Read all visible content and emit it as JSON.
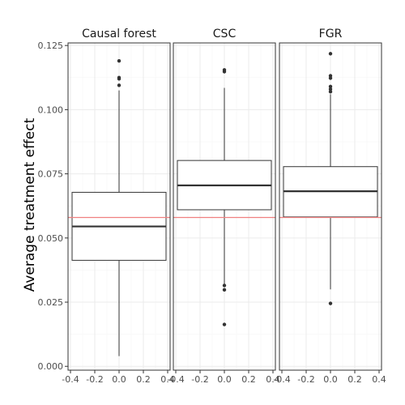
{
  "chart_data": {
    "type": "boxplot",
    "ylabel": "Average treatment effect",
    "xlabel": "",
    "ylim": [
      -0.0015,
      0.126
    ],
    "xlim": [
      -0.42,
      0.42
    ],
    "y_ticks": [
      0.0,
      0.025,
      0.05,
      0.075,
      0.1,
      0.125
    ],
    "y_tick_labels": [
      "0.000",
      "0.025",
      "0.050",
      "0.075",
      "0.100",
      "0.125"
    ],
    "x_ticks": [
      -0.4,
      -0.2,
      0.0,
      0.2,
      0.4
    ],
    "x_tick_labels": [
      "-0.4",
      "-0.2",
      "0.0",
      "0.2",
      "0.4"
    ],
    "reference_line": {
      "y": 0.058,
      "color": "#f08080"
    },
    "grid": true,
    "panels": [
      {
        "label": "Causal forest",
        "q1": 0.0413,
        "median": 0.0545,
        "q3": 0.0678,
        "whisker_low": 0.004,
        "whisker_high": 0.1075,
        "outliers": [
          0.119,
          0.1125,
          0.112,
          0.1095
        ]
      },
      {
        "label": "CSC",
        "q1": 0.061,
        "median": 0.0705,
        "q3": 0.0802,
        "whisker_low": 0.032,
        "whisker_high": 0.1085,
        "outliers": [
          0.1155,
          0.1148,
          0.0315,
          0.0298,
          0.0163
        ]
      },
      {
        "label": "FGR",
        "q1": 0.0582,
        "median": 0.0682,
        "q3": 0.0778,
        "whisker_low": 0.03,
        "whisker_high": 0.106,
        "outliers": [
          0.1218,
          0.1132,
          0.1123,
          0.109,
          0.108,
          0.107,
          0.0245
        ]
      }
    ],
    "colors": {
      "panel_border": "#333333",
      "grid_major": "#ebebeb",
      "grid_minor": "#f5f5f5",
      "strip_fill": "#ffffff",
      "box_line": "#333333",
      "tick_mark": "#333333"
    }
  }
}
